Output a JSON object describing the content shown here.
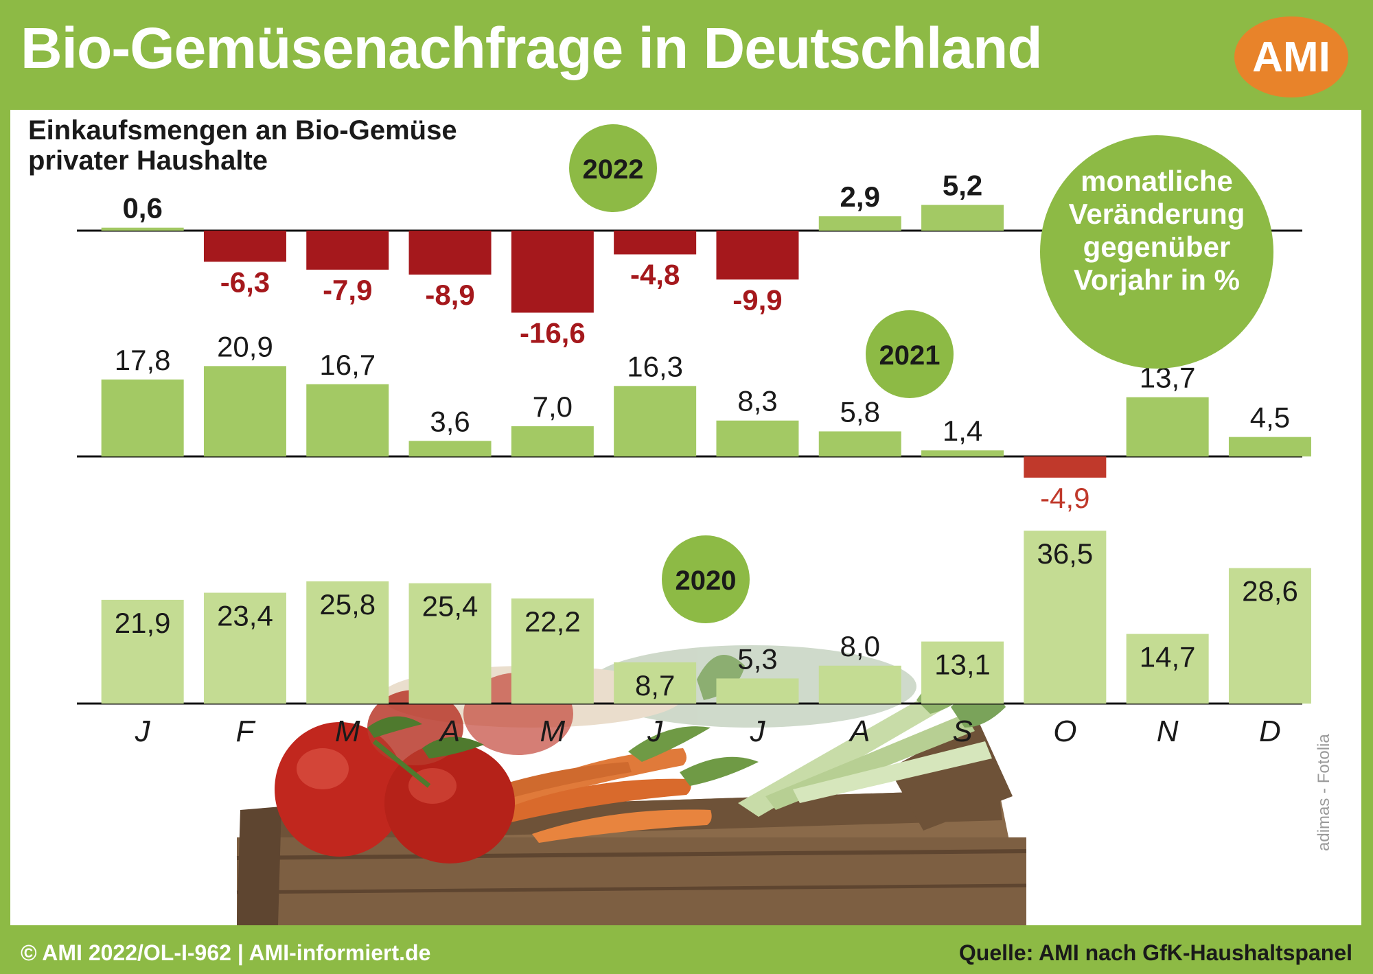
{
  "header": {
    "title": "Bio-Gemüsenachfrage in Deutschland",
    "logo_text": "AMI"
  },
  "subtitle": {
    "line1": "Einkaufsmengen an Bio-Gemüse",
    "line2": "privater Haushalte"
  },
  "legend_note": {
    "line1": "monatliche",
    "line2": "Veränderung",
    "line3": "gegenüber",
    "line4": "Vorjahr in %"
  },
  "footer": {
    "left": "© AMI 2022/OL-I-962 | AMI-informiert.de",
    "right": "Quelle: AMI nach GfK-Haushaltspanel"
  },
  "photo_credit": "adimas - Fotolia",
  "colors": {
    "background_green": "#8dba45",
    "bar_green": "#a3c964",
    "bar_light_green": "#c4dc93",
    "negative_2022": "#a5181c",
    "negative_2021": "#c0392b",
    "logo_orange": "#e8832a"
  },
  "chart_data": {
    "type": "bar",
    "categories": [
      "J",
      "F",
      "M",
      "A",
      "M",
      "J",
      "J",
      "A",
      "S",
      "O",
      "N",
      "D"
    ],
    "series": [
      {
        "name": "2022",
        "values": [
          0.6,
          -6.3,
          -7.9,
          -8.9,
          -16.6,
          -4.8,
          -9.9,
          2.9,
          5.2,
          null,
          null,
          null
        ],
        "labels": [
          "0,6",
          "-6,3",
          "-7,9",
          "-8,9",
          "-16,6",
          "-4,8",
          "-9,9",
          "2,9",
          "5,2",
          "",
          "",
          ""
        ]
      },
      {
        "name": "2021",
        "values": [
          17.8,
          20.9,
          16.7,
          3.6,
          7.0,
          16.3,
          8.3,
          5.8,
          1.4,
          -4.9,
          13.7,
          4.5
        ],
        "labels": [
          "17,8",
          "20,9",
          "16,7",
          "3,6",
          "7,0",
          "16,3",
          "8,3",
          "5,8",
          "1,4",
          "-4,9",
          "13,7",
          "4,5"
        ]
      },
      {
        "name": "2020",
        "values": [
          21.9,
          23.4,
          25.8,
          25.4,
          22.2,
          8.7,
          5.3,
          8.0,
          13.1,
          36.5,
          14.7,
          28.6
        ],
        "labels": [
          "21,9",
          "23,4",
          "25,8",
          "25,4",
          "22,2",
          "8,7",
          "5,3",
          "8,0",
          "13,1",
          "36,5",
          "14,7",
          "28,6"
        ]
      }
    ]
  }
}
